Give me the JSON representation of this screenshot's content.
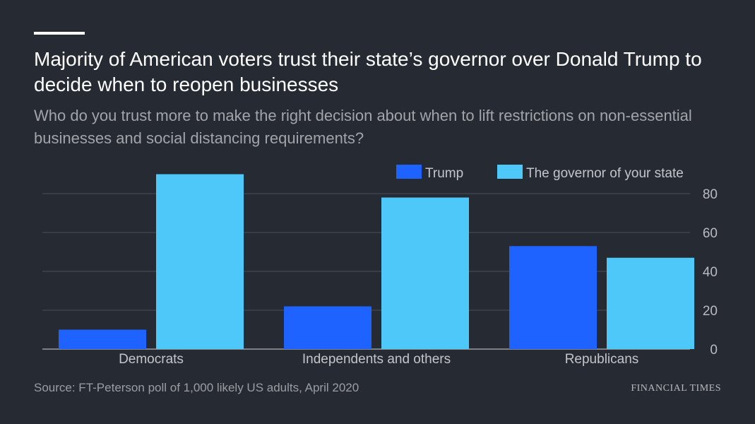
{
  "title": "Majority of American voters trust their state’s governor over Donald Trump to decide when to reopen businesses",
  "subtitle": "Who do you trust more to make the right decision about when to lift restrictions on non-essential businesses and social distancing requirements?",
  "source": "Source: FT-Peterson poll of 1,000 likely US adults, April 2020",
  "brand": "FINANCIAL TIMES",
  "colors": {
    "background": "#262a33",
    "trump": "#1e63ff",
    "governor": "#4ec8f8",
    "grid": "#4a4e57",
    "axis": "#9a9ca2",
    "text": "#ffffff"
  },
  "chart_data": {
    "type": "bar",
    "categories": [
      "Democrats",
      "Independents and others",
      "Republicans"
    ],
    "series": [
      {
        "name": "Trump",
        "values": [
          10,
          22,
          53
        ]
      },
      {
        "name": "The governor of your state",
        "values": [
          90,
          78,
          47
        ]
      }
    ],
    "ylim": [
      0,
      80
    ],
    "yticks": [
      0,
      20,
      40,
      60,
      80
    ],
    "xlabel": "",
    "ylabel": "",
    "grid": true,
    "legend": "top-right",
    "y_axis_side": "right"
  }
}
